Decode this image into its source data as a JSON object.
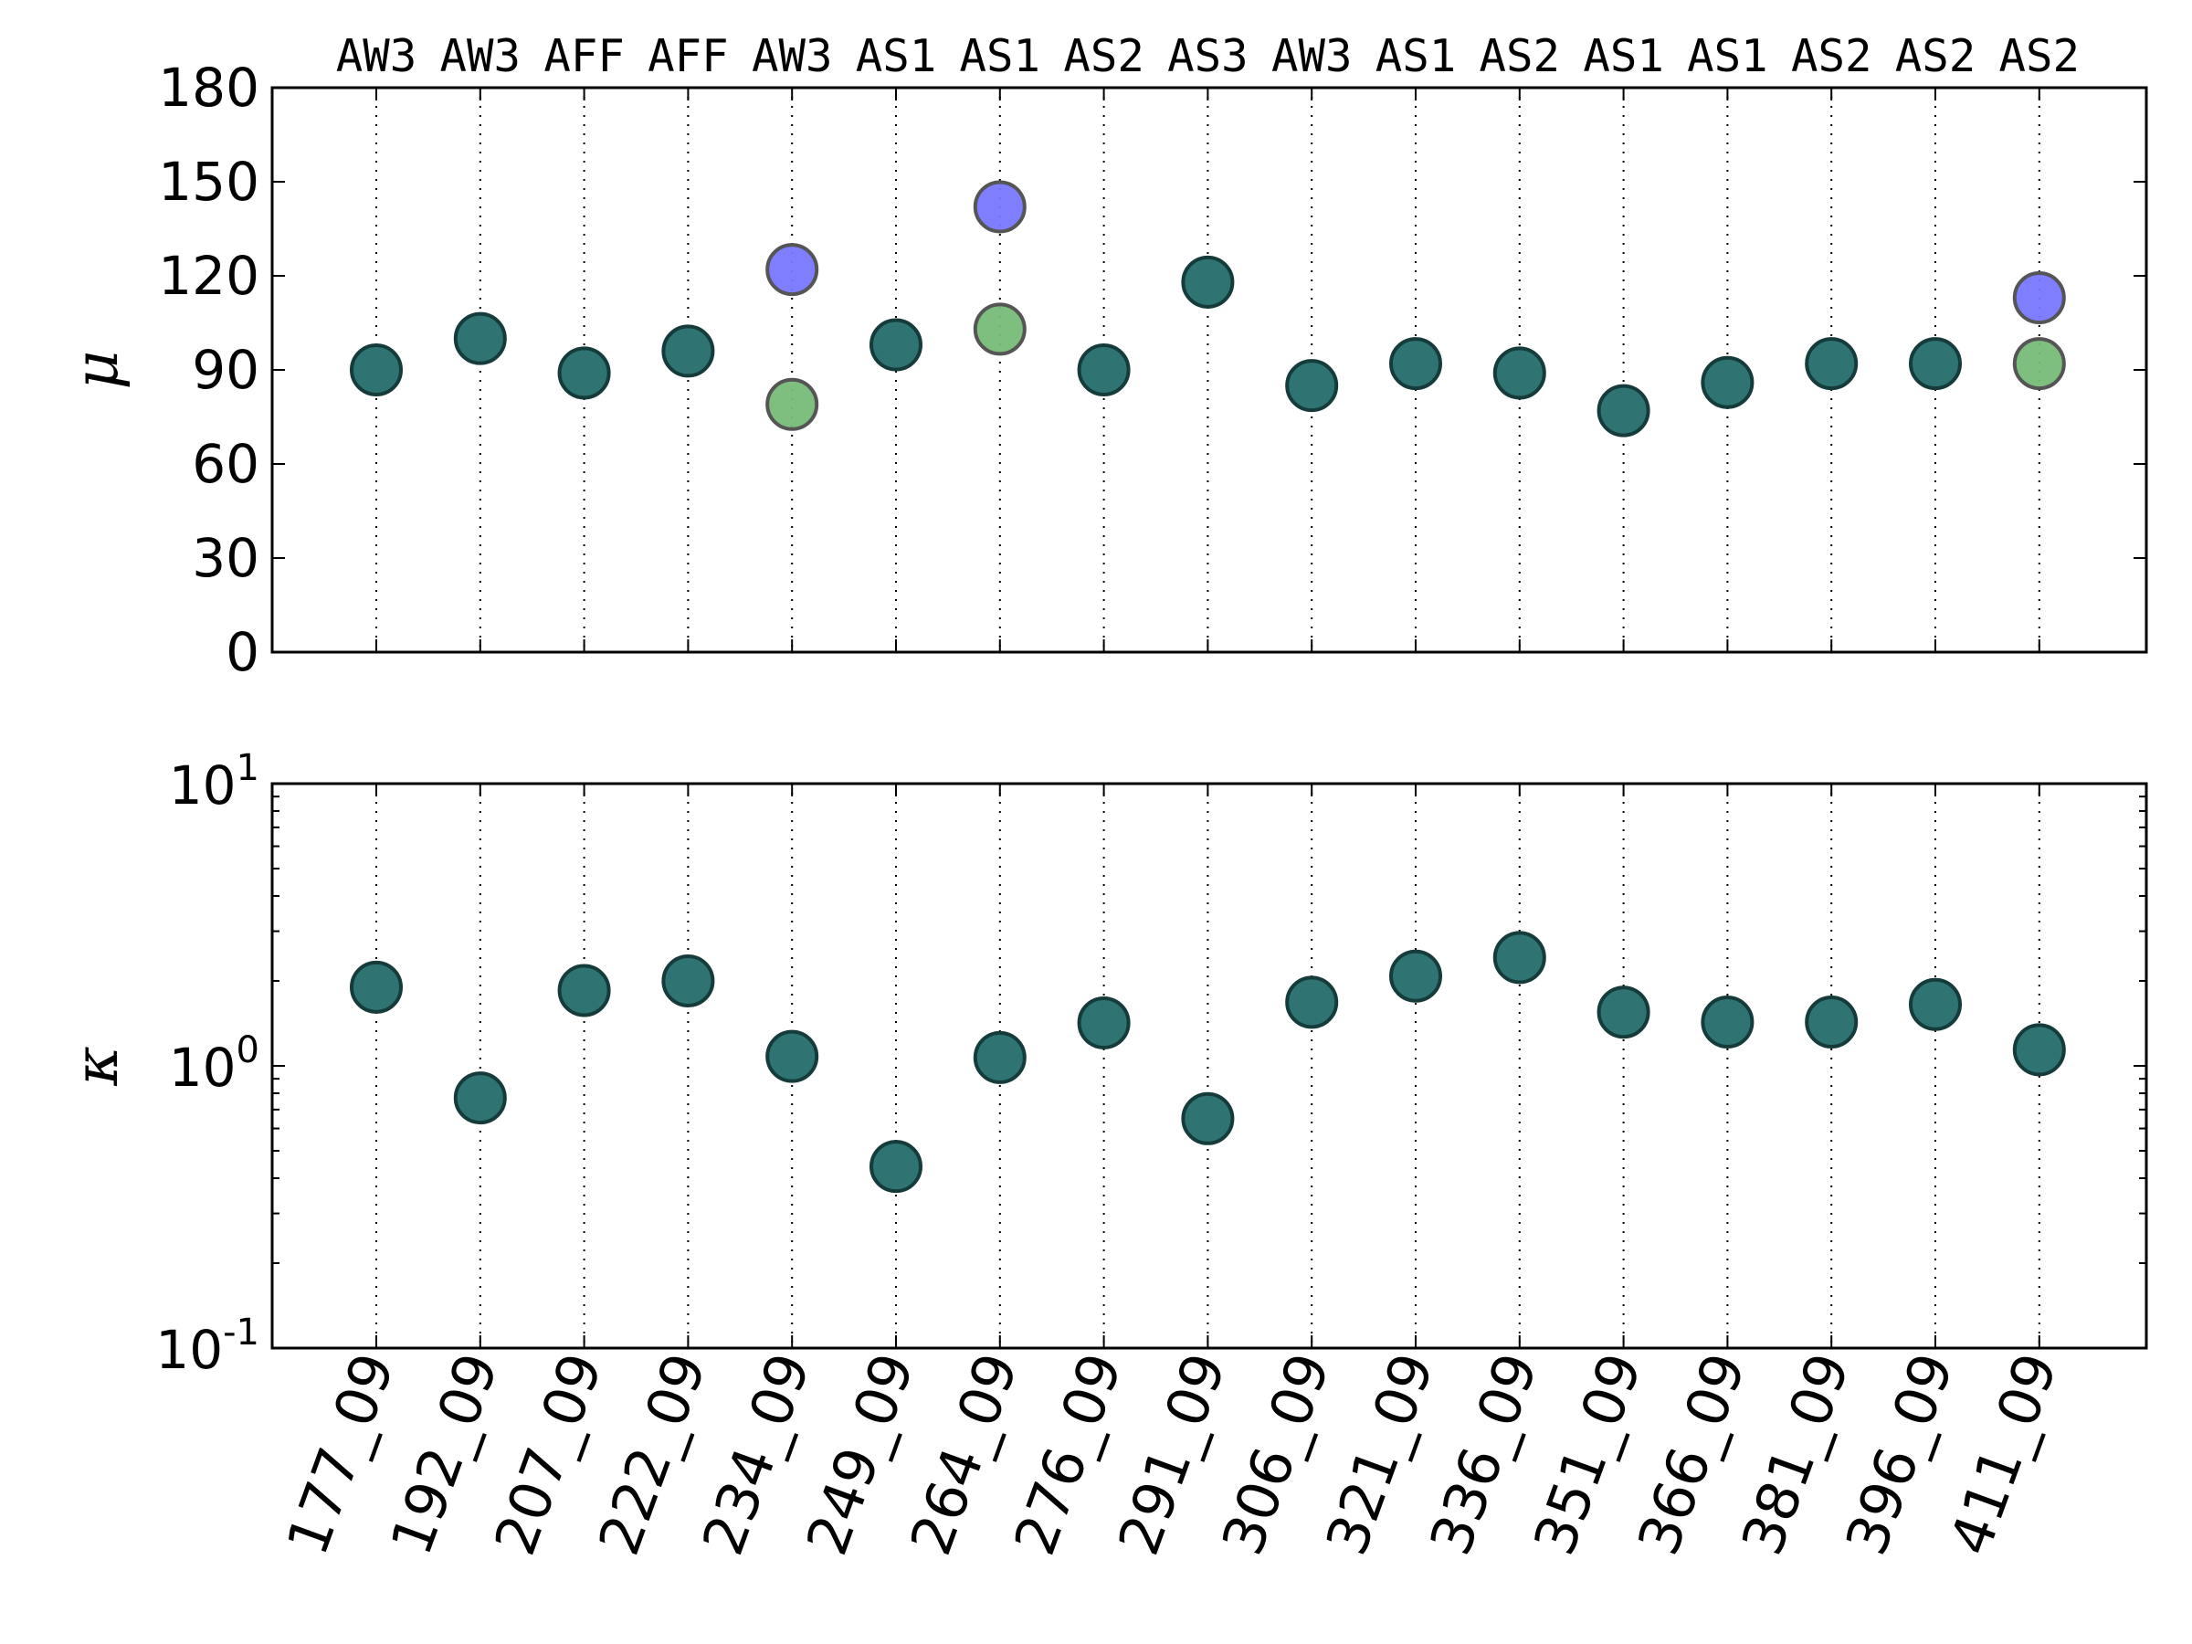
{
  "chart_data": [
    {
      "type": "scatter",
      "panel": "top",
      "ylabel": "μ",
      "ylim": [
        0,
        180
      ],
      "yticks": [
        0,
        30,
        60,
        90,
        120,
        150,
        180
      ],
      "ytick_labels": [
        "0",
        "30",
        "60",
        "90",
        "120",
        "150",
        "180"
      ],
      "top_tick_labels": [
        "AW3",
        "AW3",
        "AFF",
        "AFF",
        "AW3",
        "AS1",
        "AS1",
        "AS2",
        "AS3",
        "AW3",
        "AS1",
        "AS2",
        "AS1",
        "AS1",
        "AS2",
        "AS2",
        "AS2"
      ],
      "categories": [
        "177_09",
        "192_09",
        "207_09",
        "222_09",
        "234_09",
        "249_09",
        "264_09",
        "276_09",
        "291_09",
        "306_09",
        "321_09",
        "336_09",
        "351_09",
        "366_09",
        "381_09",
        "396_09",
        "411_09"
      ],
      "grid": "vertical dotted",
      "series": [
        {
          "color": "#2f7373",
          "values": [
            90,
            100,
            89,
            96,
            null,
            98,
            null,
            90,
            118,
            85,
            92,
            89,
            77,
            86,
            92,
            92,
            null
          ]
        },
        {
          "color": "#7777ff",
          "values": [
            null,
            null,
            null,
            null,
            122,
            null,
            142,
            null,
            null,
            null,
            null,
            null,
            null,
            null,
            null,
            null,
            113
          ]
        },
        {
          "color": "#77bb77",
          "values": [
            null,
            null,
            null,
            null,
            79,
            null,
            103,
            null,
            null,
            null,
            null,
            null,
            null,
            null,
            null,
            null,
            92
          ]
        }
      ]
    },
    {
      "type": "scatter",
      "panel": "bottom",
      "ylabel": "κ",
      "yscale": "log",
      "ylim": [
        0.1,
        10
      ],
      "ytick_labels": [
        {
          "base": "10",
          "exp": "-1"
        },
        {
          "base": "10",
          "exp": "0"
        },
        {
          "base": "10",
          "exp": "1"
        }
      ],
      "categories": [
        "177_09",
        "192_09",
        "207_09",
        "222_09",
        "234_09",
        "249_09",
        "264_09",
        "276_09",
        "291_09",
        "306_09",
        "321_09",
        "336_09",
        "351_09",
        "366_09",
        "381_09",
        "396_09",
        "411_09"
      ],
      "grid": "vertical dotted",
      "series": [
        {
          "color": "#2f7373",
          "values": [
            1.9,
            0.77,
            1.85,
            2.0,
            1.08,
            0.44,
            1.07,
            1.42,
            0.65,
            1.68,
            2.08,
            2.42,
            1.55,
            1.43,
            1.43,
            1.65,
            1.14
          ]
        }
      ]
    }
  ]
}
